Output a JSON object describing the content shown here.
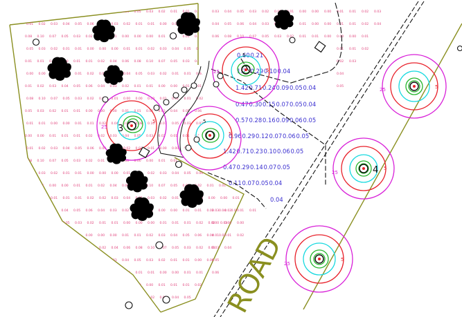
{
  "road_label": "ROAD",
  "pole_labels": {
    "p2": "4",
    "p4": "3"
  },
  "contour_labels": {
    "red_a": "5",
    "red_b": "5",
    "red_c": "5",
    "red_d": "5",
    "red_e": "5",
    "red_f": "5",
    "mag_a": "25",
    "mag_b": "25",
    "mag_c": "25",
    "mag_d": "25",
    "mag_e": "25",
    "top_a": "5",
    "top_b": "5"
  },
  "pink_values": [
    "0.00",
    "0.00",
    "0.01",
    "0.01",
    "0.01",
    "0.02",
    "0.02",
    "0.03",
    "0.04",
    "0.05",
    "0.03",
    "0.02",
    "0.01",
    "0.01",
    "0.00",
    "0.00",
    "0.00",
    "0.01",
    "0.01",
    "0.02",
    "0.03",
    "0.04",
    "0.05",
    "0.06",
    "0.04",
    "0.03",
    "0.02",
    "0.01",
    "0.01",
    "0.00",
    "0.00",
    "0.01",
    "0.01",
    "0.02",
    "0.04",
    "0.06",
    "0.08",
    "0.10",
    "0.07",
    "0.05",
    "0.03",
    "0.02",
    "0.01",
    "0.01",
    "0.00"
  ],
  "blue_readings": [
    [
      "0.60",
      "0.21"
    ],
    [
      "1.2",
      "0.29",
      "0.10",
      "0.04"
    ],
    [
      "1.42",
      "0.71",
      "0.24",
      "0.09",
      "0.05",
      "0.04"
    ],
    [
      "0.47",
      "0.30",
      "0.15",
      "0.07",
      "0.05",
      "0.04"
    ],
    [
      "0.57",
      "0.28",
      "0.16",
      "0.09",
      "0.06",
      "0.05"
    ],
    [
      "0.96",
      "0.29",
      "0.12",
      "0.07",
      "0.06",
      "0.05"
    ],
    [
      "1.42",
      "0.71",
      "0.23",
      "0.10",
      "0.06",
      "0.05"
    ],
    [
      "0.47",
      "0.29",
      "0.14",
      "0.07",
      "0.05"
    ],
    [
      "0.11",
      "0.07",
      "0.05",
      "0.04"
    ],
    [
      "0.04"
    ]
  ],
  "colors": {
    "boundary": "#8a8f20",
    "contour_red": "#e8202a",
    "contour_magenta": "#d81fd8",
    "contour_cyan": "#17d9df",
    "contour_green": "#24b52b",
    "grid_pink": "#e0407a",
    "grid_blue": "#3a2fd0",
    "linework": "#111111"
  }
}
